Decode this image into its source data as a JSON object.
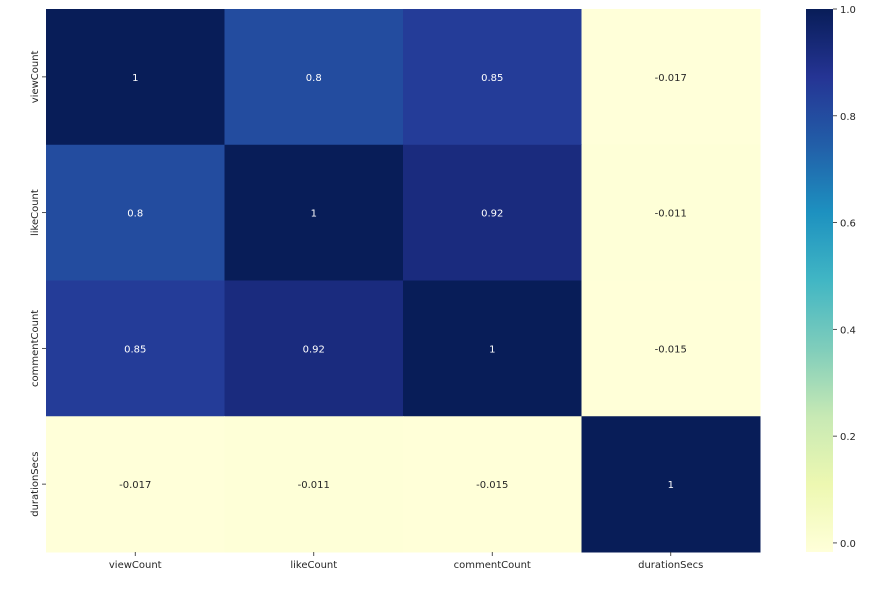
{
  "chart_data": {
    "type": "heatmap",
    "title": "",
    "xlabel": "",
    "ylabel": "",
    "x_categories": [
      "viewCount",
      "likeCount",
      "commentCount",
      "durationSecs"
    ],
    "y_categories": [
      "viewCount",
      "likeCount",
      "commentCount",
      "durationSecs"
    ],
    "values": [
      [
        1,
        0.8,
        0.85,
        -0.017
      ],
      [
        0.8,
        1,
        0.92,
        -0.011
      ],
      [
        0.85,
        0.92,
        1,
        -0.015
      ],
      [
        -0.017,
        -0.011,
        -0.015,
        1
      ]
    ],
    "labels": [
      [
        "1",
        "0.8",
        "0.85",
        "-0.017"
      ],
      [
        "0.8",
        "1",
        "0.92",
        "-0.011"
      ],
      [
        "0.85",
        "0.92",
        "1",
        "-0.015"
      ],
      [
        "-0.017",
        "-0.011",
        "-0.015",
        "1"
      ]
    ],
    "colormap": "YlGnBu",
    "colorbar": {
      "range": [
        -0.017,
        1
      ],
      "ticks": [
        0.0,
        0.2,
        0.4,
        0.6,
        0.8,
        1.0
      ],
      "tick_labels": [
        "0.0",
        "0.2",
        "0.4",
        "0.6",
        "0.8",
        "1.0"
      ]
    },
    "annotation_color_light": "#ffffff",
    "annotation_color_dark": "#262626"
  }
}
